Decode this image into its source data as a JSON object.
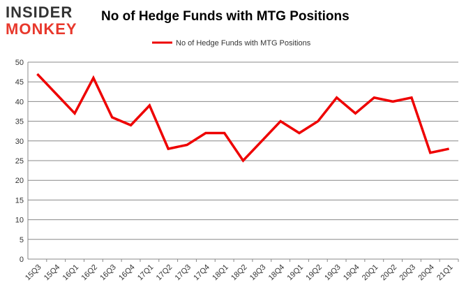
{
  "logo": {
    "line1": "INSIDER",
    "line2": "MONKEY"
  },
  "chart_data": {
    "type": "line",
    "title": "No of Hedge Funds with MTG Positions",
    "categories": [
      "15Q3",
      "15Q4",
      "16Q1",
      "16Q2",
      "16Q3",
      "16Q4",
      "17Q1",
      "17Q2",
      "17Q3",
      "17Q4",
      "18Q1",
      "18Q2",
      "18Q3",
      "18Q4",
      "19Q1",
      "19Q2",
      "19Q3",
      "19Q4",
      "20Q1",
      "20Q2",
      "20Q3",
      "20Q4",
      "21Q1"
    ],
    "series": [
      {
        "name": "No of Hedge Funds with MTG Positions",
        "color": "#ee0000",
        "values": [
          47,
          42,
          37,
          46,
          36,
          34,
          39,
          28,
          29,
          32,
          32,
          25,
          30,
          35,
          32,
          35,
          41,
          37,
          41,
          40,
          41,
          27,
          28
        ]
      }
    ],
    "ylim": [
      0,
      50
    ],
    "yticks": [
      0,
      5,
      10,
      15,
      20,
      25,
      30,
      35,
      40,
      45,
      50
    ],
    "grid": true,
    "legend": "top-center"
  }
}
